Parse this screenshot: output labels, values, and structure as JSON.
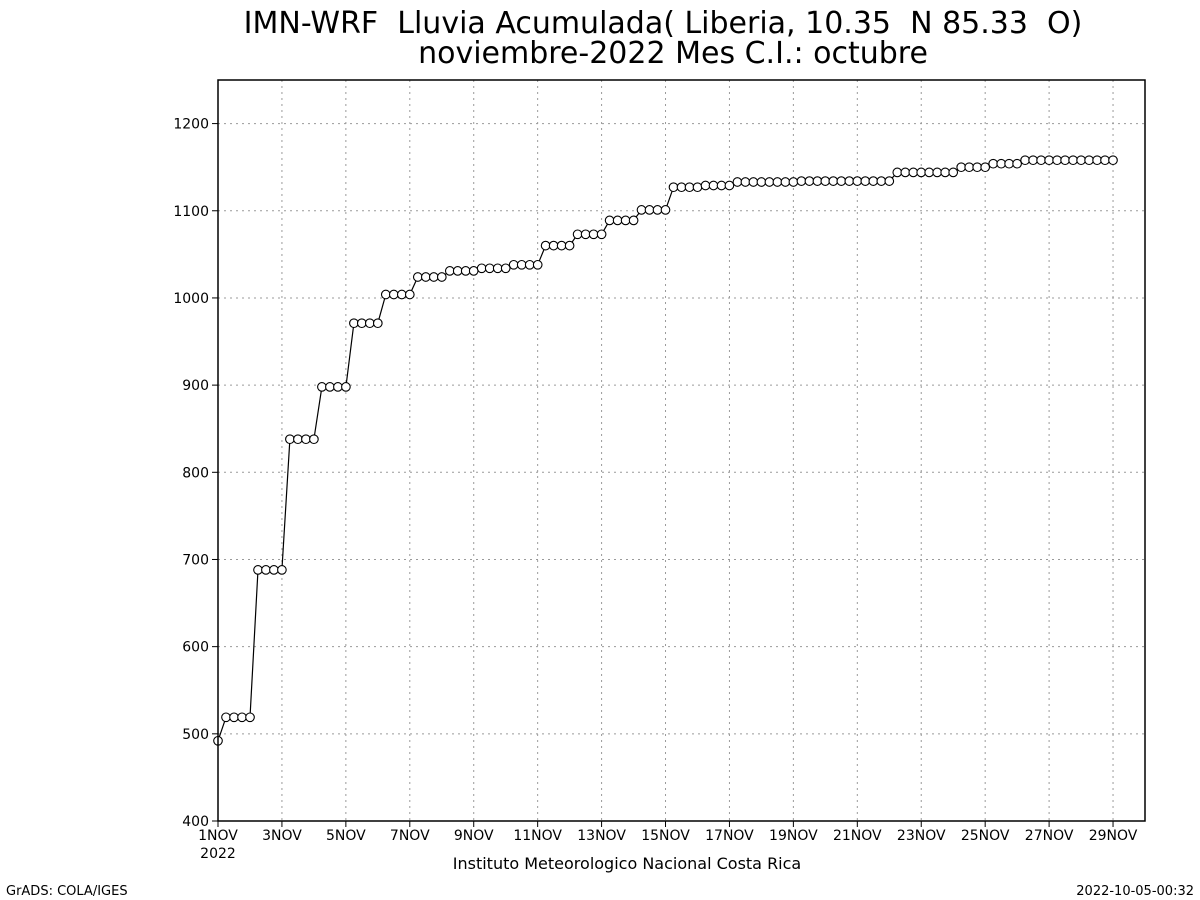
{
  "title_line1": "IMN-WRF  Lluvia Acumulada( Liberia, 10.35  N 85.33  O)",
  "title_line2": "noviembre-2022 Mes C.I.: octubre",
  "credit": "Instituto Meteorologico Nacional Costa Rica",
  "footer_left": "GrADS: COLA/IGES",
  "footer_right": "2022-10-05-00:32",
  "chart_data": {
    "type": "line",
    "title": "IMN-WRF  Lluvia Acumulada( Liberia, 10.35  N 85.33  O) noviembre-2022 Mes C.I.: octubre",
    "xlabel": "",
    "ylabel": "",
    "ylim": [
      400,
      1250
    ],
    "yticks": [
      400,
      500,
      600,
      700,
      800,
      900,
      1000,
      1100,
      1200
    ],
    "xlim": [
      1,
      30
    ],
    "xtick_days": [
      1,
      3,
      5,
      7,
      9,
      11,
      13,
      15,
      17,
      19,
      21,
      23,
      25,
      27,
      29
    ],
    "xtick_labels": [
      "1NOV",
      "3NOV",
      "5NOV",
      "7NOV",
      "9NOV",
      "11NOV",
      "13NOV",
      "15NOV",
      "17NOV",
      "19NOV",
      "21NOV",
      "23NOV",
      "25NOV",
      "27NOV",
      "29NOV"
    ],
    "xtick_sublabel": "2022",
    "grid": true,
    "marker": "open-circle",
    "series": [
      {
        "x_start_day": 1,
        "step_hours": 6,
        "values": [
          492,
          519,
          519,
          519,
          519,
          688,
          688,
          688,
          688,
          838,
          838,
          838,
          838,
          898,
          898,
          898,
          898,
          971,
          971,
          971,
          971,
          1004,
          1004,
          1004,
          1004,
          1024,
          1024,
          1024,
          1024,
          1031,
          1031,
          1031,
          1031,
          1034,
          1034,
          1034,
          1034,
          1038,
          1038,
          1038,
          1038,
          1060,
          1060,
          1060,
          1060,
          1073,
          1073,
          1073,
          1073,
          1089,
          1089,
          1089,
          1089,
          1101,
          1101,
          1101,
          1101,
          1127,
          1127,
          1127,
          1127,
          1129,
          1129,
          1129,
          1129,
          1133,
          1133,
          1133,
          1133,
          1133,
          1133,
          1133,
          1133,
          1134,
          1134,
          1134,
          1134,
          1134,
          1134,
          1134,
          1134,
          1134,
          1134,
          1134,
          1134,
          1144,
          1144,
          1144,
          1144,
          1144,
          1144,
          1144,
          1144,
          1150,
          1150,
          1150,
          1150,
          1154,
          1154,
          1154,
          1154,
          1158,
          1158,
          1158,
          1158,
          1158,
          1158,
          1158,
          1158,
          1158,
          1158,
          1158,
          1158
        ]
      }
    ]
  }
}
